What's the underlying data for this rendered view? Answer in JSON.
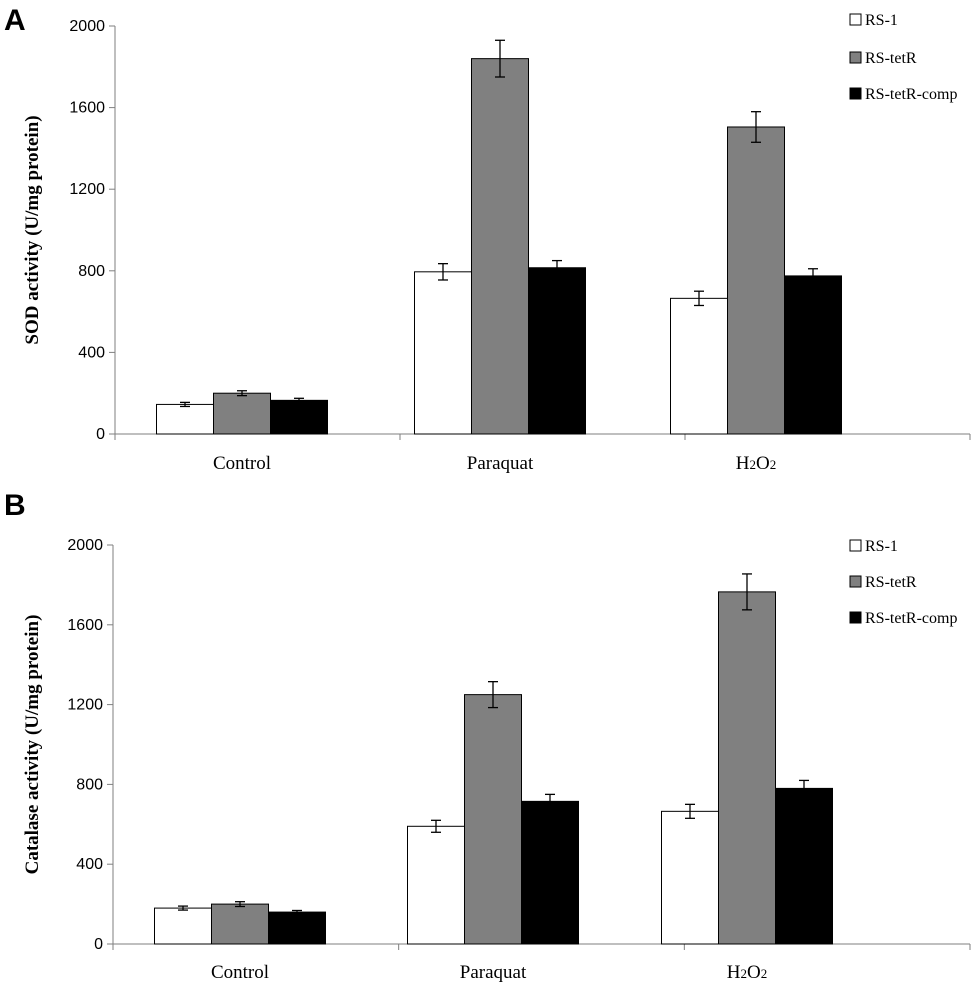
{
  "chart_data": [
    {
      "panel": "A",
      "type": "bar",
      "ylabel": "SOD activity (U/mg protein)",
      "ylim": [
        0,
        2000
      ],
      "yticks": [
        0,
        400,
        800,
        1200,
        1600,
        2000
      ],
      "categories": [
        "Control",
        "Paraquat",
        "H2O2"
      ],
      "legend_position": "top-right",
      "series": [
        {
          "name": "RS-1",
          "color": "#ffffff",
          "values": [
            145,
            795,
            665
          ],
          "errors": [
            10,
            40,
            35
          ]
        },
        {
          "name": "RS-tetR",
          "color": "#808080",
          "values": [
            200,
            1840,
            1505
          ],
          "errors": [
            12,
            90,
            75
          ]
        },
        {
          "name": "RS-tetR-comp",
          "color": "#000000",
          "values": [
            165,
            815,
            775
          ],
          "errors": [
            10,
            35,
            35
          ]
        }
      ]
    },
    {
      "panel": "B",
      "type": "bar",
      "ylabel": "Catalase activity (U/mg protein)",
      "ylim": [
        0,
        2000
      ],
      "yticks": [
        0,
        400,
        800,
        1200,
        1600,
        2000
      ],
      "categories": [
        "Control",
        "Paraquat",
        "H2O2"
      ],
      "legend_position": "top-right",
      "series": [
        {
          "name": "RS-1",
          "color": "#ffffff",
          "values": [
            180,
            590,
            665
          ],
          "errors": [
            10,
            30,
            35
          ]
        },
        {
          "name": "RS-tetR",
          "color": "#808080",
          "values": [
            200,
            1250,
            1765
          ],
          "errors": [
            12,
            65,
            90
          ]
        },
        {
          "name": "RS-tetR-comp",
          "color": "#000000",
          "values": [
            160,
            715,
            780
          ],
          "errors": [
            8,
            35,
            40
          ]
        }
      ]
    }
  ]
}
